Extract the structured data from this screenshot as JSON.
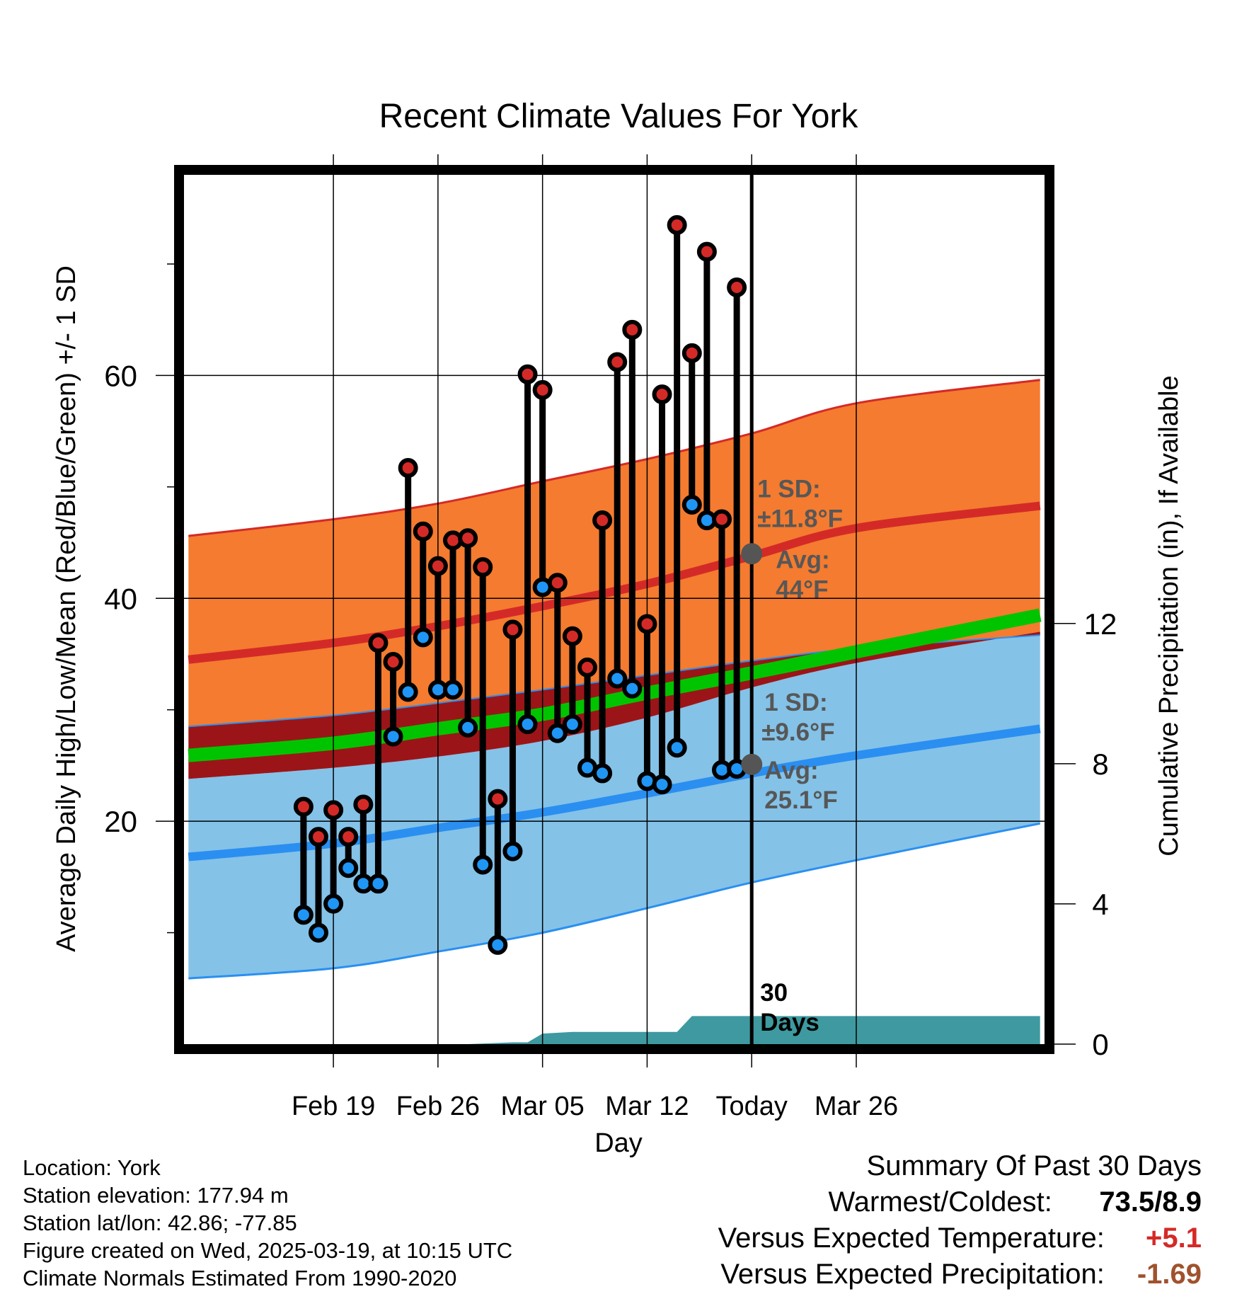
{
  "chart_data": {
    "type": "line",
    "title": "Recent Climate Values For York",
    "xlabel": "Day",
    "ylabel": "Average Daily High/Low/Mean (Red/Blue/Green) +/- 1 SD",
    "y2label": "Cumulative Precipitation (in), If Available",
    "xlim": [
      -3.0,
      54.6
    ],
    "ylim": [
      0,
      78
    ],
    "y2lim": [
      0,
      24.8
    ],
    "x_ticks": [
      {
        "x": 7,
        "label": "Feb 19"
      },
      {
        "x": 14,
        "label": "Feb 26"
      },
      {
        "x": 21,
        "label": "Mar 05"
      },
      {
        "x": 28,
        "label": "Mar 12"
      },
      {
        "x": 35,
        "label": "Today"
      },
      {
        "x": 42,
        "label": "Mar 26"
      }
    ],
    "y_ticks": [
      20,
      40,
      60
    ],
    "y2_ticks": [
      0,
      4,
      8,
      12
    ],
    "today_x": 35,
    "today_label": "30 Days",
    "normal_curves": {
      "x": [
        -2.7,
        7,
        14,
        21,
        28,
        35,
        42,
        54.3
      ],
      "high_mean": [
        34.5,
        36.0,
        37.5,
        39.3,
        41.3,
        43.8,
        46.3,
        48.3
      ],
      "high_upper": [
        45.6,
        47.1,
        48.5,
        50.5,
        52.5,
        54.8,
        57.5,
        59.6
      ],
      "high_lower": [
        28.5,
        29.5,
        30.6,
        31.8,
        33.1,
        34.4,
        35.5,
        36.7
      ],
      "mean": [
        25.9,
        27.0,
        28.3,
        29.6,
        31.5,
        33.3,
        35.2,
        38.5
      ],
      "low_mean": [
        16.8,
        18.0,
        19.4,
        20.8,
        22.5,
        24.3,
        25.9,
        28.3
      ],
      "low_upper": [
        23.8,
        24.8,
        25.8,
        27.2,
        29.3,
        32.0,
        34.2,
        37.0
      ],
      "low_lower": [
        5.9,
        6.8,
        8.3,
        10.0,
        12.2,
        14.5,
        16.5,
        19.8
      ]
    },
    "series": [
      {
        "name": "Daily High",
        "x": [
          5,
          6,
          7,
          8,
          9,
          10,
          11,
          12,
          13,
          14,
          15,
          16,
          17,
          18,
          19,
          20,
          21,
          22,
          23,
          24,
          25,
          26,
          27,
          28,
          29,
          30,
          31,
          32,
          33,
          34
        ],
        "values": [
          21.3,
          18.6,
          21.0,
          18.6,
          21.5,
          36.0,
          34.3,
          51.7,
          46.0,
          42.9,
          45.2,
          45.4,
          42.8,
          22.0,
          37.2,
          60.1,
          58.7,
          41.4,
          36.6,
          33.8,
          47.0,
          61.2,
          64.1,
          37.7,
          58.3,
          73.5,
          62.0,
          71.1,
          47.1,
          67.9
        ]
      },
      {
        "name": "Daily Low",
        "x": [
          5,
          6,
          7,
          8,
          9,
          10,
          11,
          12,
          13,
          14,
          15,
          16,
          17,
          18,
          19,
          20,
          21,
          22,
          23,
          24,
          25,
          26,
          27,
          28,
          29,
          30,
          31,
          32,
          33,
          34
        ],
        "values": [
          11.6,
          10.0,
          12.6,
          15.8,
          14.4,
          14.4,
          27.6,
          31.6,
          36.5,
          31.8,
          31.8,
          28.4,
          16.1,
          8.9,
          17.3,
          28.7,
          41.0,
          27.9,
          28.7,
          24.8,
          24.3,
          32.8,
          31.9,
          23.6,
          23.3,
          26.6,
          48.4,
          47.0,
          24.6,
          24.7
        ]
      }
    ],
    "precipitation": {
      "x": [
        5,
        16,
        19,
        20,
        21,
        23,
        26,
        29,
        30,
        31,
        34,
        35,
        54.3
      ],
      "values": [
        0,
        0,
        0.05,
        0.05,
        0.3,
        0.35,
        0.35,
        0.35,
        0.35,
        0.8,
        0.8,
        0.8,
        0.8
      ]
    },
    "annotations": {
      "high_sd": "1 SD:",
      "high_sd_value": "±11.8°F",
      "high_avg": "Avg:",
      "high_avg_value": "44°F",
      "high_avg_point": 44.0,
      "low_sd": "1 SD:",
      "low_sd_value": "±9.6°F",
      "low_avg": "Avg:",
      "low_avg_value": "25.1°F",
      "low_avg_point": 25.1
    },
    "colors": {
      "high_band": "#f47b2f",
      "high_line": "#d42a27",
      "overlap_band": "#9b1518",
      "mean_band": "#00c400",
      "low_band": "#84c2e8",
      "low_line": "#2a8ff0",
      "precip": "#3e9aa0",
      "high_dot": "#d42a27",
      "low_dot": "#1f96f5",
      "annotation": "#575757"
    }
  },
  "footer": {
    "location": "Location: York",
    "elevation": "Station elevation: 177.94 m",
    "latlon": "Station lat/lon: 42.86; -77.85",
    "created": "Figure created on Wed, 2025-03-19, at 10:15 UTC",
    "normals": "Climate Normals Estimated From 1990-2020"
  },
  "summary": {
    "title": "Summary Of Past 30 Days",
    "warmest_label": "Warmest/Coldest:",
    "warmest_value": "73.5/8.9",
    "temp_label": "Versus Expected Temperature:",
    "temp_value": "+5.1",
    "temp_color": "#d42a27",
    "precip_label": "Versus Expected Precipitation:",
    "precip_value": "-1.69",
    "precip_color": "#a0522d"
  }
}
